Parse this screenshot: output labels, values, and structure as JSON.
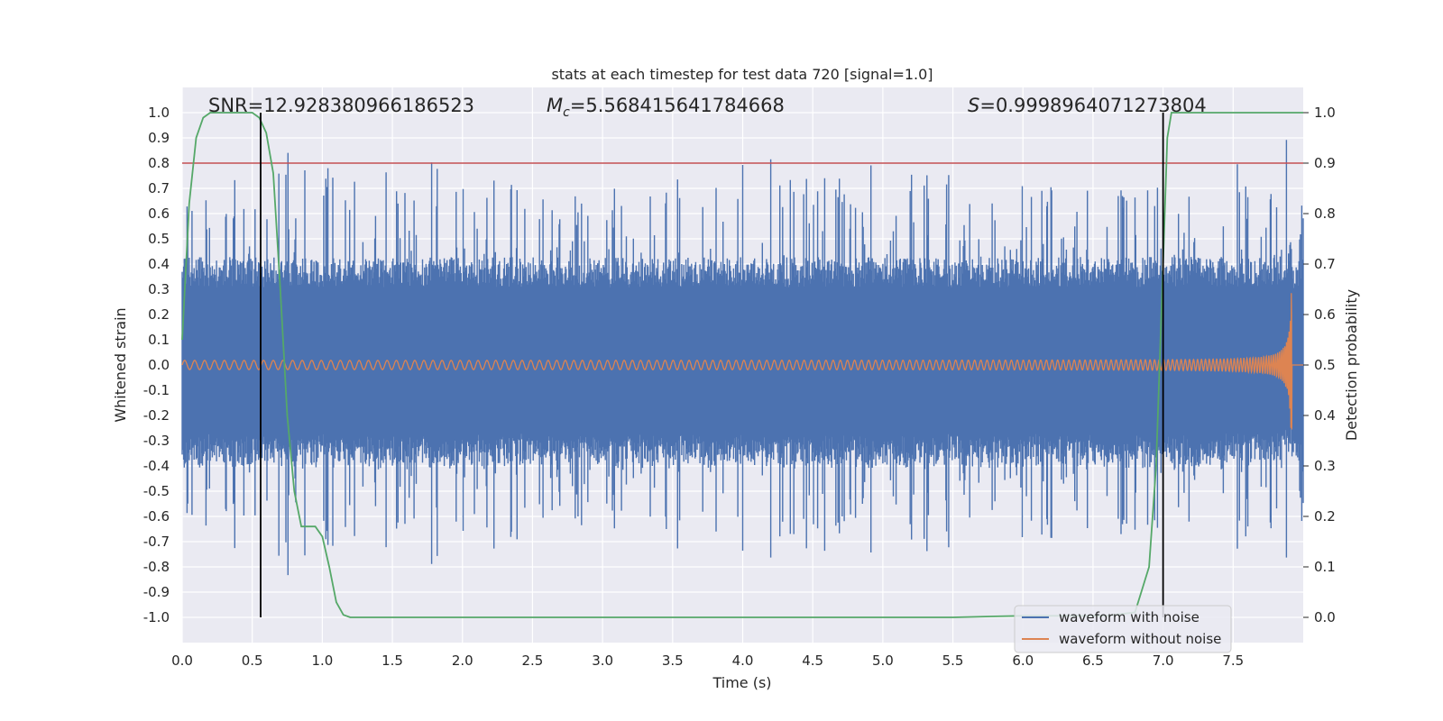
{
  "chart_data": {
    "type": "line",
    "title": "stats at each timestep for test data 720 [signal=1.0]",
    "xlabel": "Time (s)",
    "ylabel": "Whitened strain",
    "y2label": "Detection probability",
    "xlim": [
      0.0,
      8.0
    ],
    "ylim": [
      -1.1,
      1.1
    ],
    "y2lim": [
      -0.05,
      1.05
    ],
    "xticks": [
      "0.0",
      "0.5",
      "1.0",
      "1.5",
      "2.0",
      "2.5",
      "3.0",
      "3.5",
      "4.0",
      "4.5",
      "5.0",
      "5.5",
      "6.0",
      "6.5",
      "7.0",
      "7.5"
    ],
    "xtick_values": [
      0.0,
      0.5,
      1.0,
      1.5,
      2.0,
      2.5,
      3.0,
      3.5,
      4.0,
      4.5,
      5.0,
      5.5,
      6.0,
      6.5,
      7.0,
      7.5
    ],
    "yticks": [
      "1.0",
      "0.9",
      "0.8",
      "0.7",
      "0.6",
      "0.5",
      "0.4",
      "0.3",
      "0.2",
      "0.1",
      "0.0",
      "-0.1",
      "-0.2",
      "-0.3",
      "-0.4",
      "-0.5",
      "-0.6",
      "-0.7",
      "-0.8",
      "-0.9",
      "-1.0"
    ],
    "ytick_values": [
      1.0,
      0.9,
      0.8,
      0.7,
      0.6,
      0.5,
      0.4,
      0.3,
      0.2,
      0.1,
      0.0,
      -0.1,
      -0.2,
      -0.3,
      -0.4,
      -0.5,
      -0.6,
      -0.7,
      -0.8,
      -0.9,
      -1.0
    ],
    "y2ticks": [
      "1.0",
      "0.9",
      "0.8",
      "0.7",
      "0.6",
      "0.5",
      "0.4",
      "0.3",
      "0.2",
      "0.1",
      "0.0"
    ],
    "y2tick_values": [
      1.0,
      0.9,
      0.8,
      0.7,
      0.6,
      0.5,
      0.4,
      0.3,
      0.2,
      0.1,
      0.0
    ],
    "annotations": {
      "snr": "SNR=12.928380966186523",
      "mc_symbol": "M",
      "mc_sub": "c",
      "mc_value": "=5.568415641784668",
      "s_symbol": "S",
      "s_value": "=0.9998964071273804"
    },
    "series": [
      {
        "name": "waveform with noise",
        "color": "#4c72b0",
        "kind": "noisy strain, amplitude ~±0.4 with spikes to ~±0.95"
      },
      {
        "name": "waveform without noise",
        "color": "#dd8452",
        "kind": "chirp from 0.0 to 7.92 s, peak amplitude ~0.35"
      },
      {
        "name": "detection probability",
        "color": "#55a868",
        "axis": "right",
        "x": [
          0.0,
          0.05,
          0.1,
          0.15,
          0.2,
          0.3,
          0.4,
          0.5,
          0.55,
          0.6,
          0.65,
          0.7,
          0.75,
          0.8,
          0.85,
          0.9,
          0.95,
          1.0,
          1.05,
          1.1,
          1.15,
          1.2,
          1.25,
          1.5,
          2.0,
          3.0,
          4.0,
          5.0,
          5.5,
          5.8,
          6.0,
          6.4,
          6.6,
          6.8,
          6.9,
          6.95,
          7.0,
          7.03,
          7.06,
          7.1,
          7.5,
          8.0
        ],
        "values": [
          0.55,
          0.82,
          0.95,
          0.99,
          1.0,
          1.0,
          1.0,
          1.0,
          0.99,
          0.96,
          0.88,
          0.65,
          0.4,
          0.25,
          0.18,
          0.18,
          0.18,
          0.16,
          0.1,
          0.03,
          0.005,
          0.0,
          0.0,
          0.0,
          0.0,
          0.0,
          0.0,
          0.0,
          0.0,
          0.002,
          0.003,
          0.003,
          0.003,
          0.01,
          0.1,
          0.3,
          0.7,
          0.95,
          1.0,
          1.0,
          1.0,
          1.0
        ]
      }
    ],
    "threshold": {
      "value": 0.9,
      "axis": "right",
      "color": "#c44e52"
    },
    "vertical_markers": [
      0.56,
      7.0
    ],
    "legend": {
      "placement": "lower-right",
      "entries": [
        "waveform with noise",
        "waveform without noise"
      ]
    }
  }
}
